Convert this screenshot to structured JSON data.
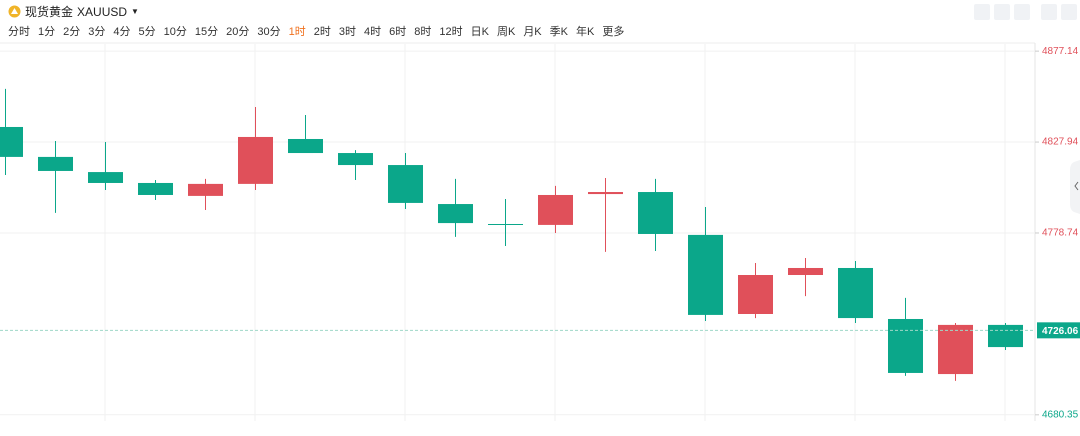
{
  "toolbar": {
    "symbol": "现货黄金",
    "code": "XAUUSD",
    "periods": [
      "分时",
      "1分",
      "2分",
      "3分",
      "4分",
      "5分",
      "10分",
      "15分",
      "20分",
      "30分",
      "1时",
      "2时",
      "3时",
      "4时",
      "6时",
      "8时",
      "12时",
      "日K",
      "周K",
      "月K",
      "季K",
      "年K",
      "更多"
    ],
    "active_period_index": 10
  },
  "chart_data": {
    "type": "candlestick",
    "open": [
      4836.1,
      4819.9,
      4811.7,
      4805.8,
      4798.8,
      4805.3,
      4829.6,
      4822.0,
      4815.5,
      4794.4,
      4783.6,
      4783.1,
      4799.8,
      4800.9,
      4777.7,
      4734.9,
      4756.0,
      4759.8,
      4732.2,
      4702.4,
      4729.0
    ],
    "high": [
      4856.7,
      4828.5,
      4828.0,
      4807.4,
      4808.0,
      4846.9,
      4842.6,
      4823.6,
      4822.0,
      4808.0,
      4797.1,
      4804.2,
      4808.5,
      4808.0,
      4792.8,
      4762.5,
      4765.2,
      4763.6,
      4743.6,
      4730.0,
      4730.0
    ],
    "low": [
      4810.1,
      4789.6,
      4802.0,
      4796.6,
      4791.2,
      4802.0,
      4822.0,
      4807.4,
      4791.7,
      4776.6,
      4771.7,
      4778.7,
      4768.5,
      4769.0,
      4731.1,
      4732.7,
      4744.6,
      4730.0,
      4701.4,
      4698.7,
      4715.4
    ],
    "close": [
      4819.9,
      4812.3,
      4805.8,
      4799.3,
      4805.3,
      4830.7,
      4822.0,
      4815.5,
      4795.0,
      4784.1,
      4783.1,
      4799.3,
      4800.9,
      4778.2,
      4734.4,
      4756.0,
      4759.8,
      4732.7,
      4703.0,
      4729.0,
      4717.0
    ],
    "up_color": "#e0505a",
    "down_color": "#0ba78a",
    "ylim": [
      4677,
      4881
    ],
    "yticks": [
      4680.35,
      4778.74,
      4827.94,
      4877.14
    ],
    "last_price": 4726.06,
    "grid": true
  }
}
